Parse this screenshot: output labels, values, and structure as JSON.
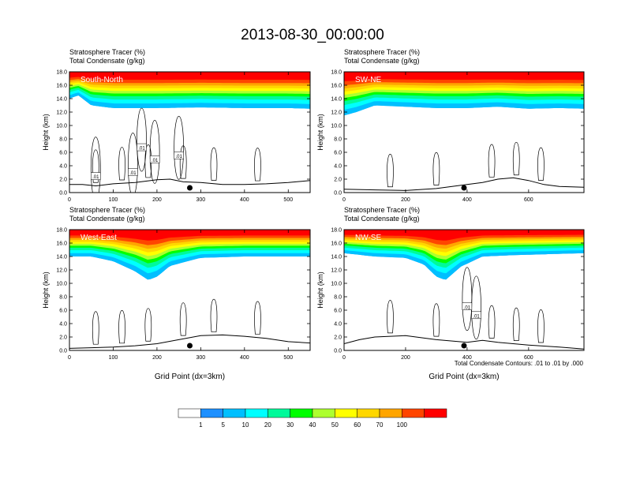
{
  "figure": {
    "title": "2013-08-30_00:00:00",
    "footnote": "Total Condensate Contours: .01 to .01 by .000"
  },
  "colorbar": {
    "labels": [
      "1",
      "5",
      "10",
      "20",
      "30",
      "40",
      "50",
      "60",
      "70",
      "100"
    ],
    "colors": [
      "#ffffff",
      "#1e90ff",
      "#00bfff",
      "#00ffff",
      "#00fa9a",
      "#00ff00",
      "#adff2f",
      "#ffff00",
      "#ffd700",
      "#ffa500",
      "#ff4500",
      "#ff0000"
    ]
  },
  "chart_data": [
    {
      "type": "area",
      "panel_label": "South-North",
      "title_line1": "Stratosphere Tracer   (%)",
      "title_line2": "Total Condensate   (g/kg)",
      "ylabel": "Height (km)",
      "xlabel": "",
      "xlim": [
        0,
        550
      ],
      "ylim": [
        0,
        18
      ],
      "xticks": [
        "0",
        "100",
        "200",
        "300",
        "400",
        "500"
      ],
      "xtick_values": [
        0,
        100,
        200,
        300,
        400,
        500
      ],
      "yticks": [
        "0.0",
        "2.0",
        "4.0",
        "6.0",
        "8.0",
        "10.0",
        "12.0",
        "14.0",
        "16.0",
        "18.0"
      ],
      "tracer_base_km": [
        [
          0,
          14.0
        ],
        [
          20,
          14.5
        ],
        [
          50,
          13.0
        ],
        [
          100,
          12.6
        ],
        [
          200,
          12.6
        ],
        [
          300,
          12.7
        ],
        [
          400,
          12.6
        ],
        [
          500,
          12.6
        ],
        [
          550,
          12.5
        ]
      ],
      "terrain_km": [
        [
          0,
          1.2
        ],
        [
          30,
          1.2
        ],
        [
          60,
          1.0
        ],
        [
          100,
          1.3
        ],
        [
          150,
          1.5
        ],
        [
          200,
          1.9
        ],
        [
          230,
          2.0
        ],
        [
          260,
          1.6
        ],
        [
          300,
          1.5
        ],
        [
          350,
          1.2
        ],
        [
          400,
          1.2
        ],
        [
          450,
          1.3
        ],
        [
          500,
          1.5
        ],
        [
          550,
          1.8
        ]
      ],
      "marker_x": 275,
      "contour_labels": [
        ".01",
        ".01",
        ".01",
        ".01",
        ".01"
      ],
      "contour_label_points": [
        [
          60,
          2.4
        ],
        [
          165,
          6.7
        ],
        [
          195,
          4.9
        ],
        [
          250,
          5.5
        ],
        [
          145,
          3.0
        ]
      ]
    },
    {
      "type": "area",
      "panel_label": "SW-NE",
      "title_line1": "Stratosphere Tracer   (%)",
      "title_line2": "Total Condensate   (g/kg)",
      "ylabel": "Height (km)",
      "xlabel": "",
      "xlim": [
        0,
        780
      ],
      "ylim": [
        0,
        18
      ],
      "xticks": [
        "0",
        "200",
        "400",
        "600"
      ],
      "xtick_values": [
        0,
        200,
        400,
        600
      ],
      "yticks": [
        "0.0",
        "2.0",
        "4.0",
        "6.0",
        "8.0",
        "10.0",
        "12.0",
        "14.0",
        "16.0",
        "18.0"
      ],
      "tracer_base_km": [
        [
          0,
          11.5
        ],
        [
          40,
          12.0
        ],
        [
          100,
          13.0
        ],
        [
          200,
          12.8
        ],
        [
          300,
          12.6
        ],
        [
          400,
          12.6
        ],
        [
          500,
          12.8
        ],
        [
          600,
          12.5
        ],
        [
          700,
          12.6
        ],
        [
          780,
          12.5
        ]
      ],
      "terrain_km": [
        [
          0,
          0.5
        ],
        [
          100,
          0.4
        ],
        [
          200,
          0.3
        ],
        [
          300,
          0.6
        ],
        [
          400,
          1.2
        ],
        [
          450,
          1.5
        ],
        [
          500,
          2.0
        ],
        [
          550,
          2.2
        ],
        [
          600,
          1.8
        ],
        [
          650,
          1.2
        ],
        [
          700,
          0.9
        ],
        [
          780,
          0.8
        ]
      ],
      "marker_x": 390,
      "contour_labels": [],
      "contour_label_points": []
    },
    {
      "type": "area",
      "panel_label": "West-East",
      "title_line1": "Stratosphere Tracer   (%)",
      "title_line2": "Total Condensate   (g/kg)",
      "ylabel": "Height (km)",
      "xlabel": "Grid Point (dx=3km)",
      "xlim": [
        0,
        550
      ],
      "ylim": [
        0,
        18
      ],
      "xticks": [
        "0",
        "100",
        "200",
        "300",
        "400",
        "500"
      ],
      "xtick_values": [
        0,
        100,
        200,
        300,
        400,
        500
      ],
      "yticks": [
        "0.0",
        "2.0",
        "4.0",
        "6.0",
        "8.0",
        "10.0",
        "12.0",
        "14.0",
        "16.0",
        "18.0"
      ],
      "tracer_base_km": [
        [
          0,
          14.0
        ],
        [
          50,
          14.0
        ],
        [
          100,
          13.3
        ],
        [
          150,
          11.8
        ],
        [
          180,
          10.5
        ],
        [
          200,
          11.0
        ],
        [
          230,
          12.6
        ],
        [
          300,
          13.8
        ],
        [
          400,
          14.0
        ],
        [
          550,
          14.0
        ]
      ],
      "terrain_km": [
        [
          0,
          0.3
        ],
        [
          50,
          0.4
        ],
        [
          100,
          0.5
        ],
        [
          150,
          0.7
        ],
        [
          200,
          1.0
        ],
        [
          250,
          1.6
        ],
        [
          300,
          2.2
        ],
        [
          350,
          2.3
        ],
        [
          400,
          2.1
        ],
        [
          450,
          1.8
        ],
        [
          500,
          1.3
        ],
        [
          550,
          1.1
        ]
      ],
      "marker_x": 275,
      "contour_labels": [],
      "contour_label_points": []
    },
    {
      "type": "area",
      "panel_label": "NW-SE",
      "title_line1": "Stratosphere Tracer   (%)",
      "title_line2": "Total Condensate   (g/kg)",
      "ylabel": "Height (km)",
      "xlabel": "Grid Point (dx=3km)",
      "xlim": [
        0,
        780
      ],
      "ylim": [
        0,
        18
      ],
      "xticks": [
        "0",
        "200",
        "400",
        "600"
      ],
      "xtick_values": [
        0,
        200,
        400,
        600
      ],
      "yticks": [
        "0.0",
        "2.0",
        "4.0",
        "6.0",
        "8.0",
        "10.0",
        "12.0",
        "14.0",
        "16.0",
        "18.0"
      ],
      "tracer_base_km": [
        [
          0,
          14.5
        ],
        [
          100,
          14.0
        ],
        [
          200,
          13.8
        ],
        [
          260,
          12.8
        ],
        [
          300,
          11.0
        ],
        [
          330,
          10.5
        ],
        [
          380,
          12.5
        ],
        [
          450,
          14.0
        ],
        [
          550,
          14.2
        ],
        [
          780,
          14.5
        ]
      ],
      "terrain_km": [
        [
          0,
          1.0
        ],
        [
          50,
          1.6
        ],
        [
          100,
          2.0
        ],
        [
          200,
          2.2
        ],
        [
          300,
          1.6
        ],
        [
          400,
          1.2
        ],
        [
          450,
          1.5
        ],
        [
          500,
          1.2
        ],
        [
          600,
          0.8
        ],
        [
          700,
          0.5
        ],
        [
          780,
          0.2
        ]
      ],
      "marker_x": 390,
      "contour_labels": [
        ".01",
        ".01"
      ],
      "contour_label_points": [
        [
          400,
          6.5
        ],
        [
          430,
          5.2
        ]
      ]
    }
  ]
}
